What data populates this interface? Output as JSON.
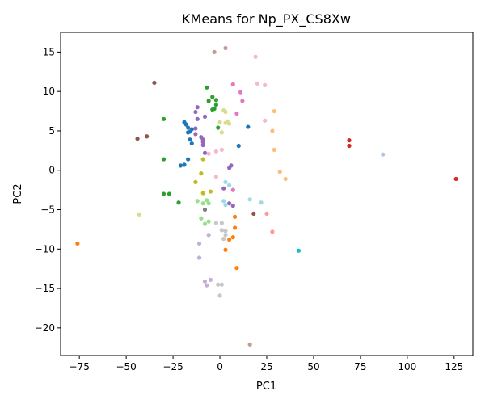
{
  "chart_data": {
    "type": "scatter",
    "title": "KMeans for Np_PX_CS8Xw",
    "xlabel": "PC1",
    "ylabel": "PC2",
    "xlim": [
      -85,
      135
    ],
    "ylim": [
      -23.5,
      17.5
    ],
    "xticks": [
      -75,
      -50,
      -25,
      0,
      25,
      50,
      75,
      100,
      125
    ],
    "yticks": [
      -20,
      -15,
      -10,
      -5,
      0,
      5,
      10,
      15
    ],
    "grid": false,
    "legend": "none",
    "clusters": [
      {
        "color": "#1f77b4",
        "points": [
          [
            -19,
            6.1
          ],
          [
            -17,
            5.4
          ],
          [
            -17,
            4.8
          ],
          [
            -18,
            5.8
          ],
          [
            -16,
            4.9
          ],
          [
            -15,
            5.2
          ],
          [
            -15,
            3.4
          ],
          [
            -16,
            3.9
          ],
          [
            -17,
            1.4
          ],
          [
            -19,
            0.7
          ],
          [
            -21,
            0.6
          ],
          [
            15,
            5.5
          ],
          [
            10,
            3.1
          ]
        ]
      },
      {
        "color": "#aec7e8",
        "points": [
          [
            87,
            2.0
          ]
        ]
      },
      {
        "color": "#ff7f0e",
        "points": [
          [
            -76,
            -9.3
          ],
          [
            8,
            -7.3
          ],
          [
            8,
            -5.9
          ],
          [
            7,
            -8.5
          ],
          [
            5,
            -8.8
          ],
          [
            3,
            -10.1
          ],
          [
            9,
            -12.4
          ]
        ]
      },
      {
        "color": "#ffbb78",
        "points": [
          [
            29,
            7.5
          ],
          [
            28,
            5.0
          ],
          [
            29,
            2.6
          ],
          [
            32,
            -0.2
          ],
          [
            35,
            -1.1
          ]
        ]
      },
      {
        "color": "#2ca02c",
        "points": [
          [
            -7,
            10.5
          ],
          [
            -4,
            9.3
          ],
          [
            -6,
            8.8
          ],
          [
            -2,
            8.9
          ],
          [
            -4,
            7.7
          ],
          [
            -3,
            7.8
          ],
          [
            -2,
            8.3
          ],
          [
            -1,
            5.4
          ],
          [
            -30,
            6.5
          ],
          [
            -30,
            1.4
          ],
          [
            -30,
            -3.0
          ],
          [
            -27,
            -3.0
          ],
          [
            -22,
            -4.1
          ]
        ]
      },
      {
        "color": "#98df8a",
        "points": [
          [
            -12,
            -3.9
          ],
          [
            -9,
            -4.2
          ],
          [
            -7,
            -3.8
          ],
          [
            -6,
            -4.2
          ],
          [
            -10,
            -6.1
          ],
          [
            -8,
            -6.8
          ],
          [
            -6,
            -6.5
          ]
        ]
      },
      {
        "color": "#d62728",
        "points": [
          [
            69,
            3.8
          ],
          [
            69,
            3.1
          ],
          [
            126,
            -1.1
          ]
        ]
      },
      {
        "color": "#ff9896",
        "points": [
          [
            25,
            -5.5
          ],
          [
            28,
            -7.8
          ]
        ]
      },
      {
        "color": "#9467bd",
        "points": [
          [
            -12,
            8.0
          ],
          [
            -13,
            7.4
          ],
          [
            -8,
            6.8
          ],
          [
            -12,
            6.5
          ],
          [
            -13,
            5.3
          ],
          [
            -13,
            4.6
          ],
          [
            -10,
            4.2
          ],
          [
            -9,
            3.9
          ],
          [
            -9,
            3.6
          ],
          [
            -9,
            3.2
          ],
          [
            -8,
            2.2
          ],
          [
            5,
            0.3
          ],
          [
            6,
            0.6
          ],
          [
            2,
            -2.3
          ],
          [
            5,
            -4.2
          ],
          [
            7,
            -4.5
          ]
        ]
      },
      {
        "color": "#c5b0d5",
        "points": [
          [
            -11,
            -9.3
          ],
          [
            -11,
            -11.1
          ],
          [
            -6,
            -8.2
          ],
          [
            -8,
            -14.1
          ],
          [
            -7,
            -14.6
          ],
          [
            -5,
            -13.9
          ]
        ]
      },
      {
        "color": "#8c564b",
        "points": [
          [
            -35,
            11.1
          ],
          [
            -39,
            4.3
          ],
          [
            -44,
            4.0
          ],
          [
            18,
            -5.5
          ]
        ]
      },
      {
        "color": "#c49c94",
        "points": [
          [
            -3,
            15.0
          ],
          [
            3,
            15.5
          ],
          [
            16,
            -22.1
          ]
        ]
      },
      {
        "color": "#e377c2",
        "points": [
          [
            7,
            10.9
          ],
          [
            11,
            9.9
          ],
          [
            12,
            8.8
          ],
          [
            9,
            7.2
          ],
          [
            7,
            -2.5
          ]
        ]
      },
      {
        "color": "#f7b6d2",
        "points": [
          [
            19,
            14.4
          ],
          [
            20,
            11.0
          ],
          [
            24,
            10.8
          ],
          [
            24,
            6.3
          ],
          [
            -6,
            2.1
          ],
          [
            -2,
            2.4
          ],
          [
            1,
            2.6
          ],
          [
            -2,
            -0.8
          ]
        ]
      },
      {
        "color": "#7f7f7f",
        "points": [
          [
            -8,
            -5.0
          ]
        ]
      },
      {
        "color": "#c7c7c7",
        "points": [
          [
            -2,
            -6.7
          ],
          [
            1,
            -6.7
          ],
          [
            1,
            -7.6
          ],
          [
            3,
            -7.7
          ],
          [
            3,
            -8.2
          ],
          [
            2,
            -8.7
          ],
          [
            -1,
            -14.5
          ],
          [
            1,
            -14.5
          ],
          [
            0,
            -15.9
          ]
        ]
      },
      {
        "color": "#bcbd22",
        "points": [
          [
            -10,
            -0.4
          ],
          [
            -13,
            -1.5
          ],
          [
            -9,
            -2.9
          ],
          [
            -5,
            -2.7
          ],
          [
            -9,
            1.4
          ]
        ]
      },
      {
        "color": "#dbdb8d",
        "points": [
          [
            -43,
            -5.6
          ],
          [
            0,
            6.1
          ],
          [
            2,
            7.6
          ],
          [
            3,
            6.0
          ],
          [
            4,
            6.2
          ],
          [
            5,
            5.9
          ],
          [
            3,
            7.4
          ],
          [
            1,
            4.8
          ]
        ]
      },
      {
        "color": "#17becf",
        "points": [
          [
            42,
            -10.2
          ]
        ]
      },
      {
        "color": "#9edae5",
        "points": [
          [
            3,
            -1.5
          ],
          [
            5,
            -1.9
          ],
          [
            3,
            -4.4
          ],
          [
            16,
            -3.7
          ],
          [
            22,
            -4.1
          ],
          [
            2,
            -3.9
          ]
        ]
      }
    ]
  }
}
